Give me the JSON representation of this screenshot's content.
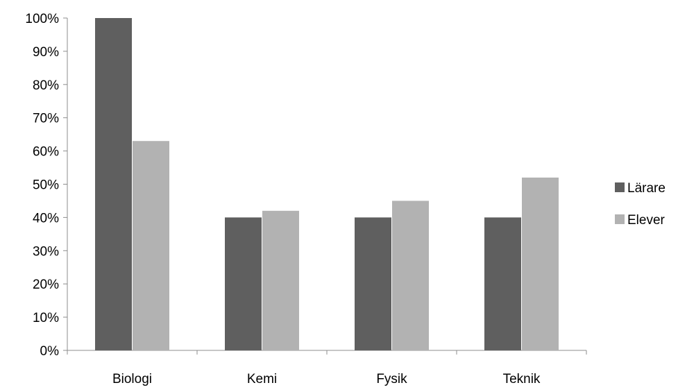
{
  "chart_data": {
    "type": "bar",
    "title": "",
    "xlabel": "",
    "ylabel": "",
    "categories": [
      "Biologi",
      "Kemi",
      "Fysik",
      "Teknik"
    ],
    "series": [
      {
        "name": "Lärare",
        "values": [
          100,
          40,
          40,
          40
        ],
        "color": "#5f5f5f"
      },
      {
        "name": "Elever",
        "values": [
          63,
          42,
          45,
          52
        ],
        "color": "#b2b2b2"
      }
    ],
    "ylim": [
      0,
      100
    ],
    "y_ticks": [
      0,
      10,
      20,
      30,
      40,
      50,
      60,
      70,
      80,
      90,
      100
    ],
    "y_tick_format": "percent",
    "grid": false,
    "legend_position": "right"
  }
}
